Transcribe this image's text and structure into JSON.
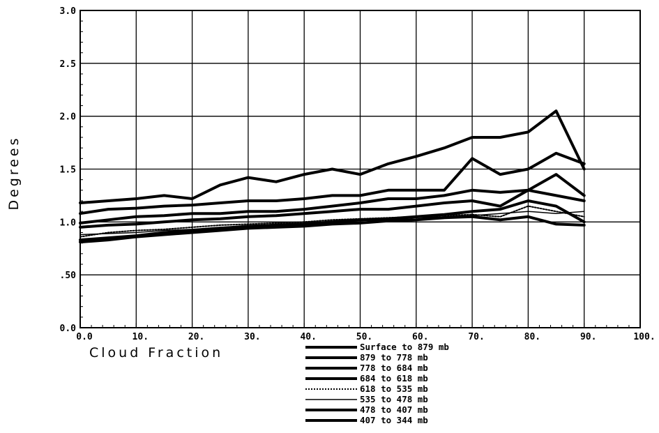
{
  "chart_data": {
    "type": "line",
    "xlabel": "Cloud Fraction",
    "ylabel": "Degrees",
    "xlim": [
      0,
      100
    ],
    "ylim": [
      0,
      3
    ],
    "x_tick_labels": [
      "0.0",
      "10.",
      "20.",
      "30.",
      "40.",
      "50.",
      "60.",
      "70.",
      "80.",
      "90.",
      "100."
    ],
    "y_tick_labels": [
      "0.0",
      ".50",
      "1.0",
      "1.5",
      "2.0",
      "2.5",
      "3.0"
    ],
    "grid": true,
    "legend_position": "below-center",
    "x": [
      0,
      5,
      10,
      15,
      20,
      25,
      30,
      35,
      40,
      45,
      50,
      55,
      60,
      65,
      70,
      75,
      80,
      85,
      90
    ],
    "series": [
      {
        "name": "Surface to 879 mb",
        "style": "thick",
        "values": [
          1.18,
          1.2,
          1.22,
          1.25,
          1.22,
          1.35,
          1.42,
          1.38,
          1.45,
          1.5,
          1.45,
          1.55,
          1.62,
          1.7,
          1.8,
          1.8,
          1.85,
          2.05,
          1.5
        ]
      },
      {
        "name": "879 to 778 mb",
        "style": "thick",
        "values": [
          1.08,
          1.12,
          1.13,
          1.15,
          1.16,
          1.18,
          1.2,
          1.2,
          1.22,
          1.25,
          1.25,
          1.3,
          1.3,
          1.3,
          1.6,
          1.45,
          1.5,
          1.65,
          1.55
        ]
      },
      {
        "name": "778 to 684 mb",
        "style": "thick",
        "values": [
          0.99,
          1.02,
          1.05,
          1.06,
          1.08,
          1.08,
          1.1,
          1.1,
          1.12,
          1.15,
          1.18,
          1.22,
          1.22,
          1.25,
          1.3,
          1.28,
          1.3,
          1.45,
          1.25
        ]
      },
      {
        "name": "684 to 618 mb",
        "style": "thick",
        "values": [
          0.95,
          0.97,
          0.98,
          1.0,
          1.02,
          1.03,
          1.05,
          1.06,
          1.08,
          1.1,
          1.12,
          1.12,
          1.15,
          1.18,
          1.2,
          1.15,
          1.3,
          1.25,
          1.2
        ]
      },
      {
        "name": "618 to 535 mb",
        "style": "dotted",
        "values": [
          0.86,
          0.9,
          0.92,
          0.93,
          0.95,
          0.97,
          0.98,
          0.99,
          1.0,
          1.02,
          1.03,
          1.04,
          1.05,
          1.06,
          1.07,
          1.05,
          1.15,
          1.1,
          1.05
        ]
      },
      {
        "name": "535 to 478 mb",
        "style": "thin",
        "values": [
          0.88,
          0.89,
          0.9,
          0.92,
          0.93,
          0.95,
          0.96,
          0.98,
          0.99,
          1.0,
          1.01,
          1.02,
          1.04,
          1.05,
          1.06,
          1.08,
          1.1,
          1.08,
          1.1
        ]
      },
      {
        "name": "478 to 407 mb",
        "style": "thick",
        "values": [
          0.83,
          0.85,
          0.87,
          0.9,
          0.92,
          0.94,
          0.96,
          0.97,
          0.98,
          1.0,
          1.02,
          1.03,
          1.05,
          1.07,
          1.1,
          1.12,
          1.2,
          1.15,
          1.0
        ]
      },
      {
        "name": "407 to 344 mb",
        "style": "thick",
        "values": [
          0.81,
          0.83,
          0.86,
          0.88,
          0.9,
          0.92,
          0.94,
          0.95,
          0.96,
          0.98,
          0.99,
          1.01,
          1.02,
          1.04,
          1.05,
          1.02,
          1.05,
          0.98,
          0.97
        ]
      }
    ]
  }
}
